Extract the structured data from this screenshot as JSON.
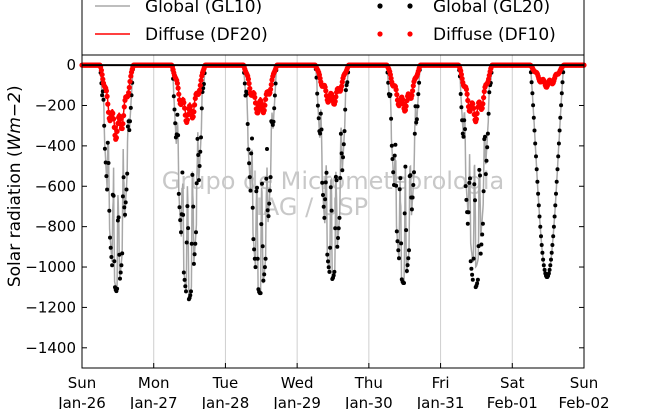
{
  "chart_data": {
    "type": "scatter",
    "title": "",
    "xlabel": "",
    "ylabel": "Solar radiation (Wm−2)",
    "ylabel_main": "Solar radiation (",
    "ylabel_unit": "Wm−2",
    "ylabel_close": ")",
    "ylim": [
      -1500,
      50
    ],
    "xlim_days": [
      0,
      7
    ],
    "yticks": [
      0,
      -200,
      -400,
      -600,
      -800,
      -1000,
      -1200,
      -1400
    ],
    "xticks": [
      {
        "day": 0,
        "line1": "Sun",
        "line2": "Jan-26"
      },
      {
        "day": 1,
        "line1": "Mon",
        "line2": "Jan-27"
      },
      {
        "day": 2,
        "line1": "Tue",
        "line2": "Jan-28"
      },
      {
        "day": 3,
        "line1": "Wed",
        "line2": "Jan-29"
      },
      {
        "day": 4,
        "line1": "Thu",
        "line2": "Jan-30"
      },
      {
        "day": 5,
        "line1": "Fri",
        "line2": "Jan-31"
      },
      {
        "day": 6,
        "line1": "Sat",
        "line2": "Feb-01"
      },
      {
        "day": 7,
        "line1": "Sun",
        "line2": "Feb-02"
      }
    ],
    "grid": "vertical",
    "legend": {
      "placement": "top",
      "entries": [
        {
          "label": "Global (GL10)",
          "style": "line",
          "color": "#a8a8a8"
        },
        {
          "label": "Diffuse (DF20)",
          "style": "line",
          "color": "#ff0000"
        },
        {
          "label": "Global (GL20)",
          "style": "dots",
          "color": "#000000"
        },
        {
          "label": "Diffuse (DF10)",
          "style": "dots",
          "color": "#ff0000"
        }
      ]
    },
    "watermark": [
      "Grupo de Micrometeorologia",
      "IAG / USP"
    ],
    "series": [
      {
        "name": "Global (GL10)",
        "kind": "line",
        "color": "#a8a8a8",
        "daily": [
          {
            "day": 0,
            "peak": -1100,
            "minima": [
              -600,
              -850,
              -750,
              -500
            ]
          },
          {
            "day": 1,
            "peak": -1150,
            "minima": [
              -900,
              -1000
            ]
          },
          {
            "day": 2,
            "peak": -1130,
            "minima": [
              -700,
              -900,
              -650,
              -500
            ]
          },
          {
            "day": 3,
            "peak": -1060,
            "minima": [
              -950,
              -800
            ]
          },
          {
            "day": 4,
            "peak": -1080,
            "minima": [
              -750,
              -850,
              -600
            ]
          },
          {
            "day": 5,
            "peak": -1000,
            "minima": [
              -1000,
              -600,
              -500
            ]
          },
          {
            "day": 6,
            "peak": -1050,
            "minima": []
          }
        ]
      },
      {
        "name": "Global (GL20)",
        "kind": "dots",
        "color": "#000000",
        "daily": [
          {
            "day": 0,
            "peak": -1120
          },
          {
            "day": 1,
            "peak": -1160
          },
          {
            "day": 2,
            "peak": -1130
          },
          {
            "day": 3,
            "peak": -1060
          },
          {
            "day": 4,
            "peak": -1080
          },
          {
            "day": 5,
            "peak": -1100
          },
          {
            "day": 6,
            "peak": -1050
          }
        ]
      },
      {
        "name": "Diffuse (DF20)",
        "kind": "line",
        "color": "#ff0000",
        "daily": [
          {
            "day": 0,
            "peak": -350
          },
          {
            "day": 1,
            "peak": -270
          },
          {
            "day": 2,
            "peak": -230
          },
          {
            "day": 3,
            "peak": -190
          },
          {
            "day": 4,
            "peak": -220
          },
          {
            "day": 5,
            "peak": -270
          },
          {
            "day": 6,
            "peak": -100
          }
        ]
      },
      {
        "name": "Diffuse (DF10)",
        "kind": "dots",
        "color": "#ff0000",
        "daily": [
          {
            "day": 0,
            "peak": -370
          },
          {
            "day": 1,
            "peak": -290
          },
          {
            "day": 2,
            "peak": -250
          },
          {
            "day": 3,
            "peak": -200
          },
          {
            "day": 4,
            "peak": -230
          },
          {
            "day": 5,
            "peak": -280
          },
          {
            "day": 6,
            "peak": -110
          }
        ]
      }
    ]
  }
}
